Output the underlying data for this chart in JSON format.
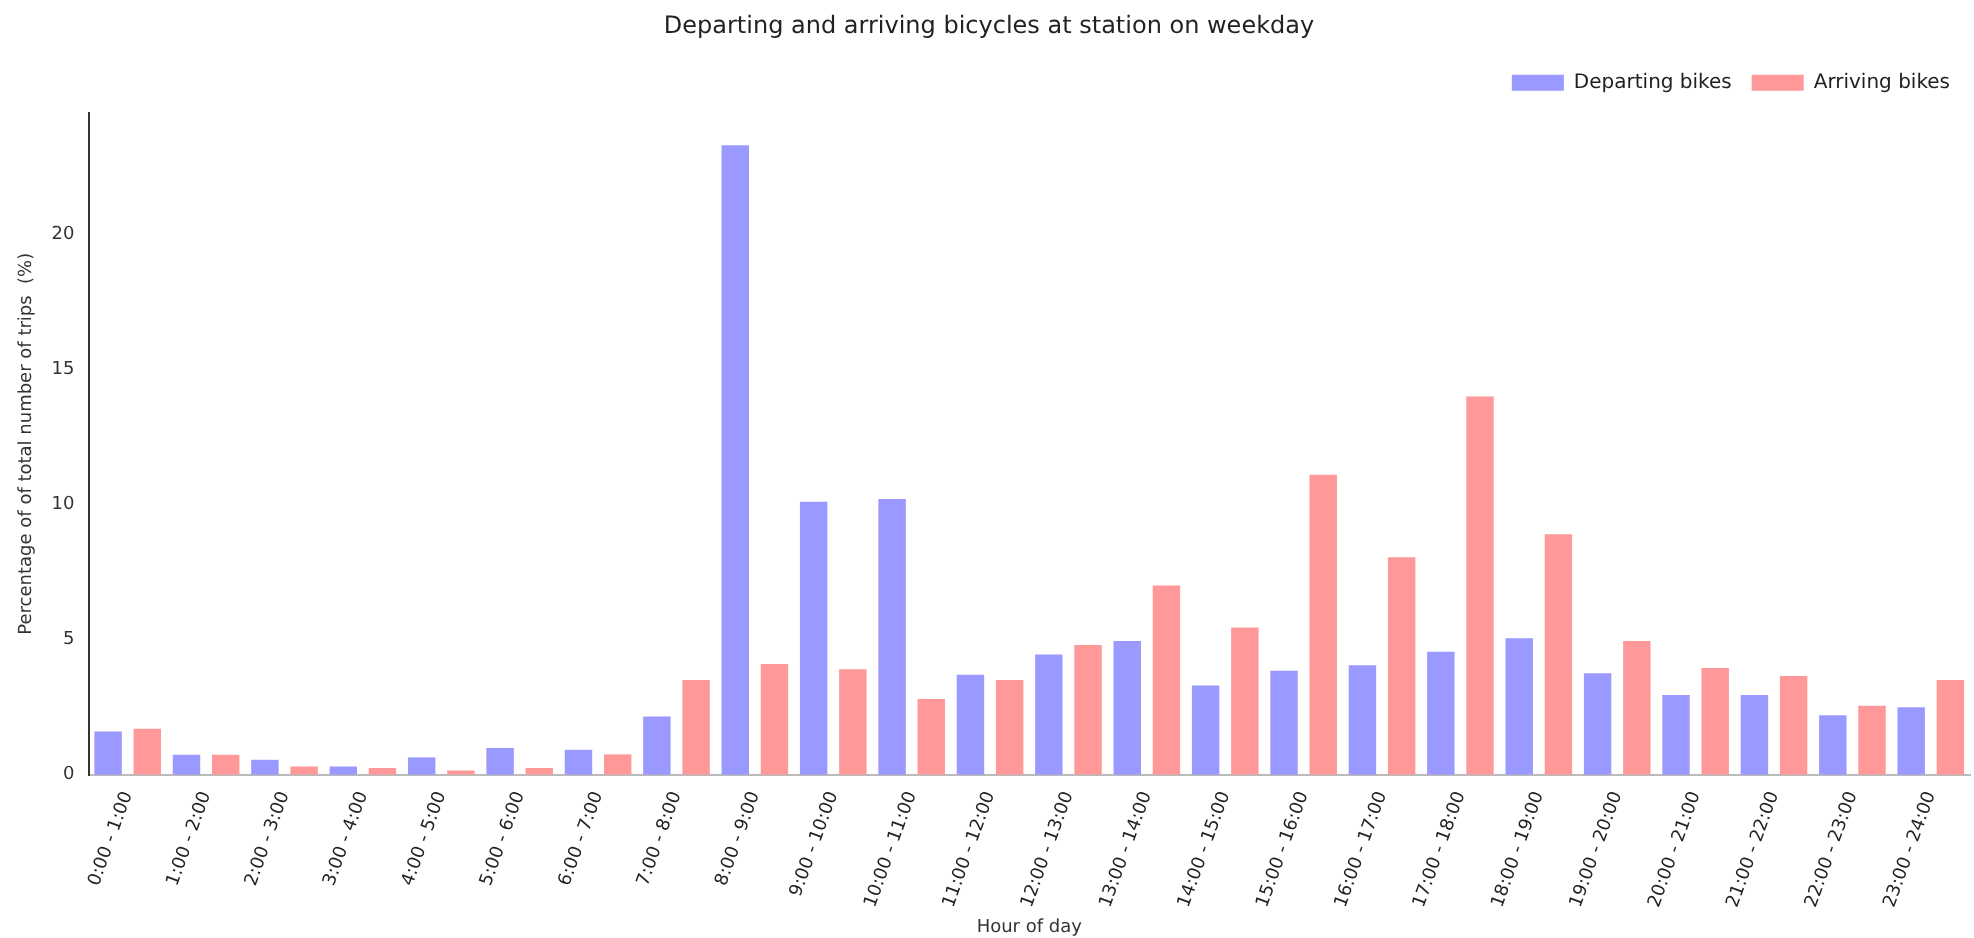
{
  "chart_data": {
    "type": "bar",
    "title": "Departing and arriving bicycles at station on weekday",
    "xlabel": "Hour of day",
    "ylabel": "Percentage of of total number of trips  (%)",
    "categories": [
      "0:00 - 1:00",
      "1:00 - 2:00",
      "2:00 - 3:00",
      "3:00 - 4:00",
      "4:00 - 5:00",
      "5:00 - 6:00",
      "6:00 - 7:00",
      "7:00 - 8:00",
      "8:00 - 9:00",
      "9:00 - 10:00",
      "10:00 - 11:00",
      "11:00 - 12:00",
      "12:00 - 13:00",
      "13:00 - 14:00",
      "14:00 - 15:00",
      "15:00 - 16:00",
      "16:00 - 17:00",
      "17:00 - 18:00",
      "18:00 - 19:00",
      "19:00 - 20:00",
      "20:00 - 21:00",
      "21:00 - 22:00",
      "22:00 - 23:00",
      "23:00 - 24:00"
    ],
    "series": [
      {
        "name": "Departing bikes",
        "color": "#9999ff",
        "values": [
          1.6,
          0.74,
          0.55,
          0.3,
          0.64,
          0.99,
          0.92,
          2.15,
          23.3,
          10.1,
          10.2,
          3.7,
          4.45,
          4.95,
          3.3,
          3.85,
          4.05,
          4.55,
          5.05,
          3.75,
          2.95,
          2.95,
          2.2,
          2.5
        ]
      },
      {
        "name": "Arriving bikes",
        "color": "#ff9999",
        "values": [
          1.7,
          0.74,
          0.3,
          0.25,
          0.15,
          0.25,
          0.75,
          3.5,
          4.1,
          3.9,
          2.8,
          3.5,
          4.8,
          7.0,
          5.45,
          11.1,
          8.05,
          14.0,
          8.9,
          4.95,
          3.95,
          3.65,
          2.55,
          3.5
        ]
      }
    ],
    "ylim": [
      0,
      24.5
    ],
    "yticks": [
      0,
      5,
      10,
      15,
      20
    ],
    "grid": false,
    "legend": "top right"
  }
}
